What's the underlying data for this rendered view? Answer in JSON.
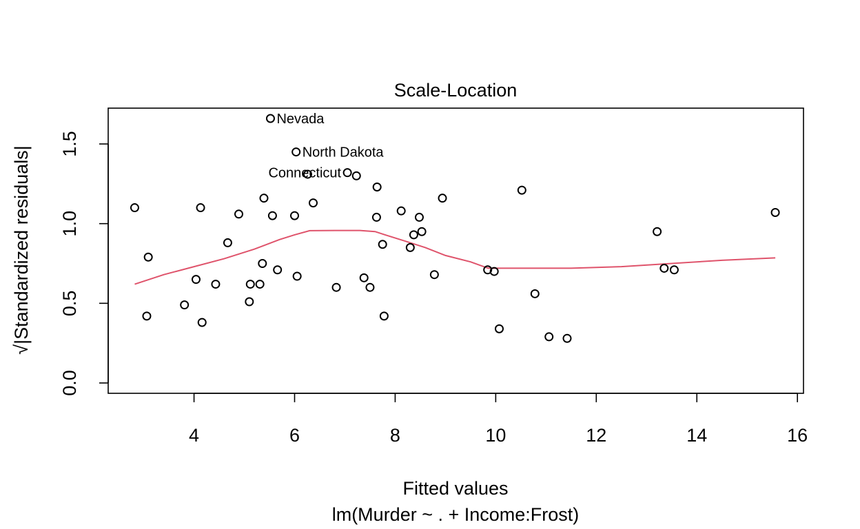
{
  "chart_data": {
    "type": "scatter",
    "title": "Scale-Location",
    "xlabel": "Fitted values",
    "sublabel": "lm(Murder ~ . + Income:Frost)",
    "ylabel": "√|Standardized residuals|",
    "xlim": [
      2.8,
      15.6
    ],
    "ylim": [
      0.0,
      1.66
    ],
    "x_ticks": [
      4,
      6,
      8,
      10,
      12,
      14,
      16
    ],
    "y_ticks": [
      0.0,
      0.5,
      1.0,
      1.5
    ],
    "x_tick_labels": [
      "4",
      "6",
      "8",
      "10",
      "12",
      "14",
      "16"
    ],
    "y_tick_labels": [
      "0.0",
      "0.5",
      "1.0",
      "1.5"
    ],
    "grid": false,
    "colors": {
      "points": "#000000",
      "smoother": "#DF536B"
    },
    "points": [
      {
        "x": 2.82,
        "y": 1.1
      },
      {
        "x": 3.06,
        "y": 0.42
      },
      {
        "x": 3.09,
        "y": 0.79
      },
      {
        "x": 3.81,
        "y": 0.49
      },
      {
        "x": 4.04,
        "y": 0.65
      },
      {
        "x": 4.13,
        "y": 1.1
      },
      {
        "x": 4.16,
        "y": 0.38
      },
      {
        "x": 4.43,
        "y": 0.62
      },
      {
        "x": 4.67,
        "y": 0.88
      },
      {
        "x": 4.89,
        "y": 1.06
      },
      {
        "x": 5.1,
        "y": 0.51
      },
      {
        "x": 5.12,
        "y": 0.62
      },
      {
        "x": 5.31,
        "y": 0.62
      },
      {
        "x": 5.36,
        "y": 0.75
      },
      {
        "x": 5.39,
        "y": 1.16
      },
      {
        "x": 5.52,
        "y": 1.66
      },
      {
        "x": 5.56,
        "y": 1.05
      },
      {
        "x": 5.66,
        "y": 0.71
      },
      {
        "x": 6.0,
        "y": 1.05
      },
      {
        "x": 6.03,
        "y": 1.45
      },
      {
        "x": 6.05,
        "y": 0.67
      },
      {
        "x": 6.26,
        "y": 1.31
      },
      {
        "x": 6.37,
        "y": 1.13
      },
      {
        "x": 6.83,
        "y": 0.6
      },
      {
        "x": 7.05,
        "y": 1.32
      },
      {
        "x": 7.23,
        "y": 1.3
      },
      {
        "x": 7.38,
        "y": 0.66
      },
      {
        "x": 7.5,
        "y": 0.6
      },
      {
        "x": 7.63,
        "y": 1.04
      },
      {
        "x": 7.64,
        "y": 1.23
      },
      {
        "x": 7.75,
        "y": 0.87
      },
      {
        "x": 7.78,
        "y": 0.42
      },
      {
        "x": 8.12,
        "y": 1.08
      },
      {
        "x": 8.3,
        "y": 0.85
      },
      {
        "x": 8.37,
        "y": 0.93
      },
      {
        "x": 8.48,
        "y": 1.04
      },
      {
        "x": 8.53,
        "y": 0.95
      },
      {
        "x": 8.78,
        "y": 0.68
      },
      {
        "x": 8.94,
        "y": 1.16
      },
      {
        "x": 9.84,
        "y": 0.71
      },
      {
        "x": 9.97,
        "y": 0.7
      },
      {
        "x": 10.07,
        "y": 0.34
      },
      {
        "x": 10.52,
        "y": 1.21
      },
      {
        "x": 10.78,
        "y": 0.56
      },
      {
        "x": 11.06,
        "y": 0.29
      },
      {
        "x": 11.42,
        "y": 0.28
      },
      {
        "x": 13.21,
        "y": 0.95
      },
      {
        "x": 13.35,
        "y": 0.72
      },
      {
        "x": 13.55,
        "y": 0.71
      },
      {
        "x": 15.56,
        "y": 1.07
      }
    ],
    "labels": [
      {
        "text": "Nevada",
        "x": 5.52,
        "y": 1.66
      },
      {
        "text": "North Dakota",
        "x": 6.03,
        "y": 1.45
      },
      {
        "text": "Connecticut",
        "x": 7.05,
        "y": 1.32
      }
    ],
    "smoother": [
      {
        "x": 2.82,
        "y": 0.62
      },
      {
        "x": 3.4,
        "y": 0.68
      },
      {
        "x": 4.0,
        "y": 0.73
      },
      {
        "x": 4.6,
        "y": 0.78
      },
      {
        "x": 5.2,
        "y": 0.84
      },
      {
        "x": 5.7,
        "y": 0.9
      },
      {
        "x": 6.0,
        "y": 0.93
      },
      {
        "x": 6.3,
        "y": 0.956
      },
      {
        "x": 6.8,
        "y": 0.957
      },
      {
        "x": 7.3,
        "y": 0.957
      },
      {
        "x": 7.6,
        "y": 0.95
      },
      {
        "x": 7.8,
        "y": 0.93
      },
      {
        "x": 8.2,
        "y": 0.89
      },
      {
        "x": 8.6,
        "y": 0.85
      },
      {
        "x": 9.0,
        "y": 0.8
      },
      {
        "x": 9.5,
        "y": 0.76
      },
      {
        "x": 9.85,
        "y": 0.72
      },
      {
        "x": 10.5,
        "y": 0.72
      },
      {
        "x": 11.5,
        "y": 0.72
      },
      {
        "x": 12.5,
        "y": 0.73
      },
      {
        "x": 13.5,
        "y": 0.75
      },
      {
        "x": 14.5,
        "y": 0.77
      },
      {
        "x": 15.56,
        "y": 0.785
      }
    ]
  }
}
